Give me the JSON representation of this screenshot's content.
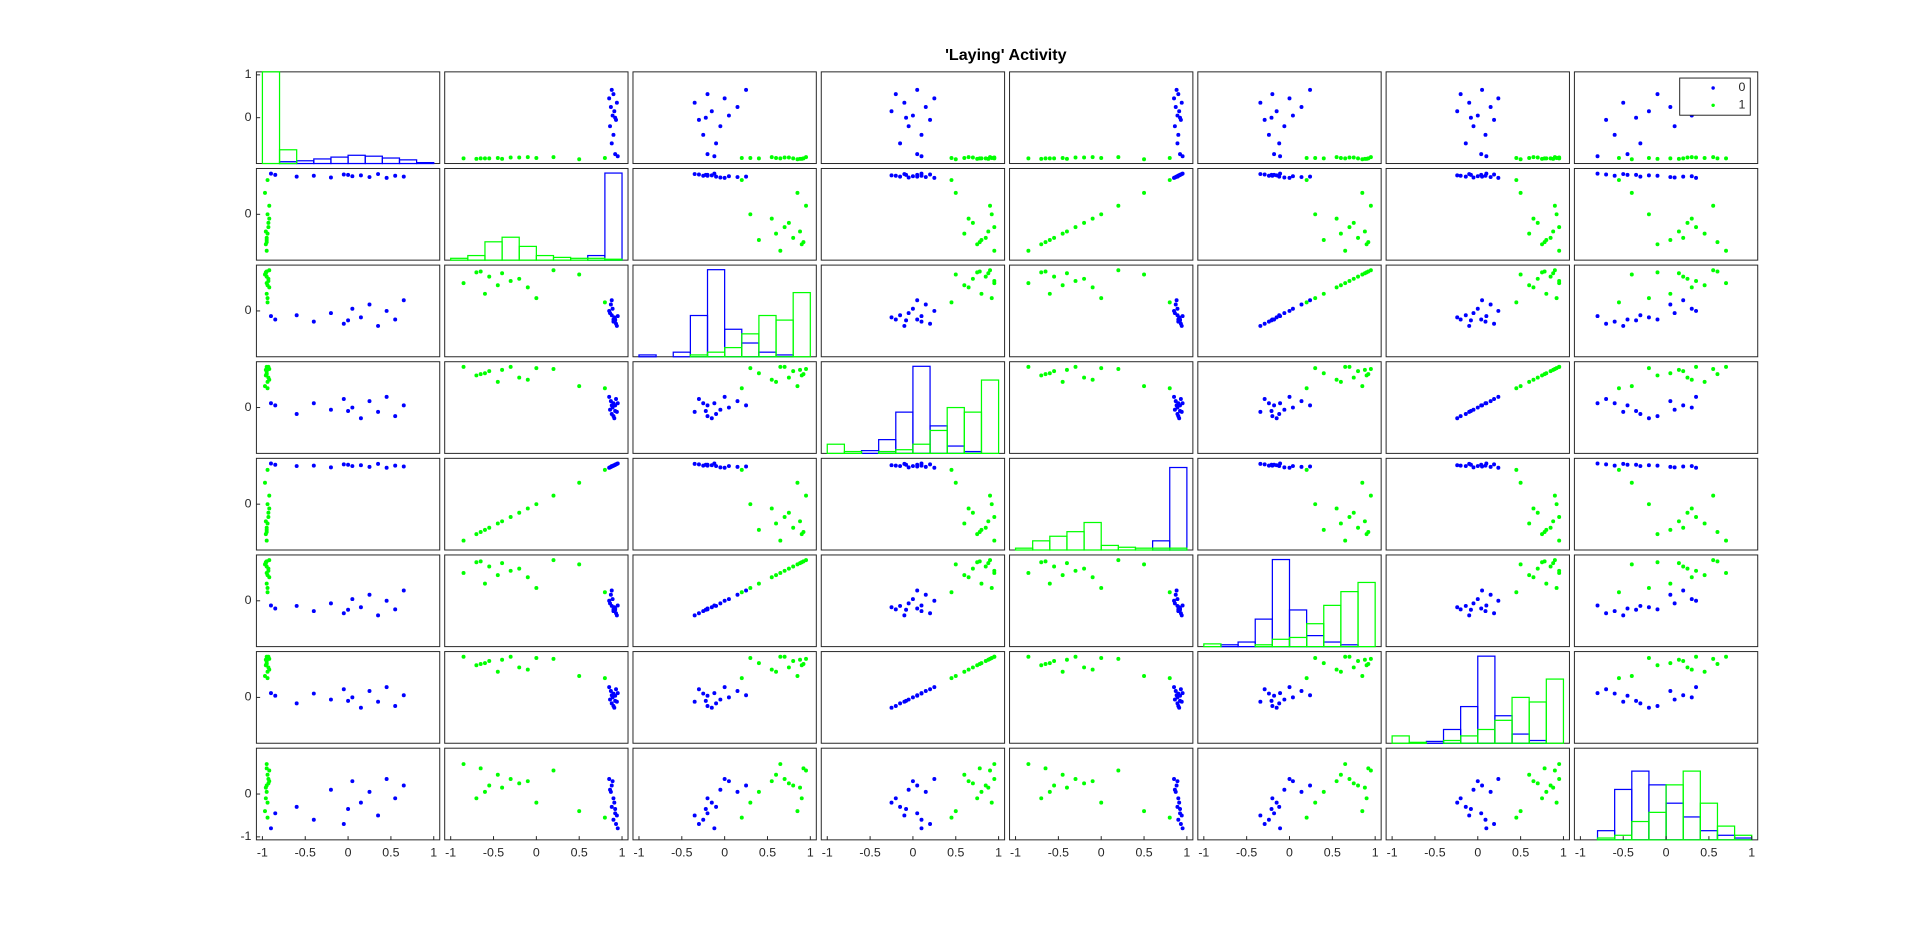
{
  "chart_data": {
    "type": "scatter_matrix",
    "title": "'Laying' Activity",
    "xlim": [
      -1.07,
      1.07
    ],
    "ylim": [
      -1.07,
      1.07
    ],
    "xticks": [
      -1,
      -0.5,
      0,
      0.5,
      1
    ],
    "row_yticks": [
      [
        0,
        1
      ],
      [
        0
      ],
      [
        0
      ],
      [
        0
      ],
      [
        0
      ],
      [
        0
      ],
      [
        0
      ],
      [
        -1,
        0
      ]
    ],
    "legend": "upper right",
    "groups": [
      {
        "name": "0",
        "color": "#0000ff",
        "observations": [
          [
            -0.85,
            0.92,
            -0.2,
            0.05,
            0.92,
            -0.18,
            0.04,
            -0.45
          ],
          [
            -0.6,
            0.88,
            -0.1,
            -0.15,
            0.89,
            -0.12,
            -0.14,
            -0.3
          ],
          [
            -0.4,
            0.9,
            -0.25,
            0.1,
            0.9,
            -0.24,
            0.09,
            -0.6
          ],
          [
            -0.2,
            0.86,
            -0.05,
            -0.05,
            0.86,
            -0.06,
            -0.05,
            0.1
          ],
          [
            -0.05,
            0.93,
            -0.3,
            0.2,
            0.93,
            -0.29,
            0.19,
            -0.7
          ],
          [
            0.05,
            0.89,
            0.05,
            0.0,
            0.89,
            0.04,
            0.0,
            0.3
          ],
          [
            0.15,
            0.91,
            -0.15,
            -0.25,
            0.91,
            -0.15,
            -0.24,
            -0.2
          ],
          [
            0.25,
            0.87,
            0.15,
            0.15,
            0.87,
            0.14,
            0.15,
            0.05
          ],
          [
            0.35,
            0.94,
            -0.35,
            -0.1,
            0.94,
            -0.34,
            -0.1,
            -0.5
          ],
          [
            0.45,
            0.85,
            0.0,
            0.25,
            0.85,
            0.0,
            0.24,
            0.35
          ],
          [
            0.55,
            0.9,
            -0.2,
            -0.2,
            0.9,
            -0.2,
            -0.2,
            -0.1
          ],
          [
            0.65,
            0.88,
            0.25,
            0.05,
            0.88,
            0.24,
            0.05,
            0.2
          ],
          [
            -0.9,
            0.95,
            -0.12,
            0.1,
            0.95,
            -0.11,
            0.1,
            -0.8
          ],
          [
            0.0,
            0.92,
            -0.22,
            -0.08,
            0.92,
            -0.21,
            -0.08,
            -0.35
          ]
        ]
      },
      {
        "name": "1",
        "color": "#00ff00",
        "observations": [
          [
            -0.95,
            -0.55,
            0.8,
            0.85,
            -0.55,
            0.8,
            0.85,
            0.2
          ],
          [
            -0.93,
            -0.3,
            0.7,
            0.95,
            -0.3,
            0.7,
            0.95,
            0.35
          ],
          [
            -0.96,
            -0.7,
            0.9,
            0.75,
            -0.7,
            0.9,
            0.75,
            -0.1
          ],
          [
            -0.94,
            -0.45,
            0.6,
            0.6,
            -0.45,
            0.6,
            0.6,
            0.45
          ],
          [
            -0.92,
            0.2,
            0.95,
            0.9,
            0.2,
            0.95,
            0.9,
            0.55
          ],
          [
            -0.95,
            -0.6,
            0.4,
            0.8,
            -0.6,
            0.4,
            0.8,
            0.05
          ],
          [
            -0.97,
            0.5,
            0.85,
            0.5,
            0.5,
            0.85,
            0.5,
            -0.4
          ],
          [
            -0.93,
            -0.2,
            0.75,
            0.7,
            -0.2,
            0.75,
            0.7,
            0.25
          ],
          [
            -0.95,
            -0.85,
            0.65,
            0.95,
            -0.85,
            0.65,
            0.95,
            0.7
          ],
          [
            -0.94,
            0.8,
            0.2,
            0.45,
            0.8,
            0.2,
            0.45,
            -0.55
          ],
          [
            -0.96,
            -0.4,
            0.88,
            0.88,
            -0.4,
            0.88,
            0.88,
            0.15
          ],
          [
            -0.92,
            -0.1,
            0.55,
            0.65,
            -0.1,
            0.55,
            0.65,
            0.3
          ],
          [
            -0.95,
            -0.65,
            0.92,
            0.78,
            -0.65,
            0.92,
            0.78,
            0.6
          ],
          [
            -0.94,
            0.0,
            0.3,
            0.92,
            0.0,
            0.3,
            0.92,
            -0.2
          ]
        ]
      }
    ],
    "histograms": [
      {
        "bins": [
          -1,
          -0.8,
          -0.6,
          -0.4,
          -0.2,
          0,
          0.2,
          0.4,
          0.6,
          0.8,
          1
        ],
        "ylim": [
          0,
          100
        ],
        "counts": [
          [
            0,
            2,
            3,
            5,
            7,
            9,
            8,
            6,
            4,
            1
          ],
          [
            100,
            15,
            0,
            0,
            0,
            0,
            0,
            0,
            0,
            0
          ]
        ]
      },
      {
        "bins": [
          -1,
          -0.8,
          -0.6,
          -0.4,
          -0.2,
          0,
          0.2,
          0.4,
          0.6,
          0.8,
          1
        ],
        "ylim": [
          0,
          100
        ],
        "counts": [
          [
            0,
            0,
            0,
            0,
            0,
            0,
            0,
            0,
            5,
            95
          ],
          [
            2,
            5,
            20,
            25,
            15,
            5,
            3,
            2,
            2,
            1
          ]
        ]
      },
      {
        "bins": [
          -1,
          -0.8,
          -0.6,
          -0.4,
          -0.2,
          0,
          0.2,
          0.4,
          0.6,
          0.8,
          1
        ],
        "ylim": [
          0,
          100
        ],
        "counts": [
          [
            2,
            0,
            5,
            45,
            95,
            30,
            15,
            5,
            2,
            0
          ],
          [
            0,
            0,
            0,
            2,
            5,
            10,
            25,
            45,
            40,
            70
          ]
        ]
      },
      {
        "bins": [
          -1,
          -0.8,
          -0.6,
          -0.4,
          -0.2,
          0,
          0.2,
          0.4,
          0.6,
          0.8,
          1
        ],
        "ylim": [
          0,
          100
        ],
        "counts": [
          [
            0,
            0,
            3,
            15,
            45,
            95,
            30,
            8,
            2,
            0
          ],
          [
            10,
            2,
            0,
            2,
            4,
            10,
            25,
            50,
            45,
            80
          ]
        ]
      },
      {
        "bins": [
          -1,
          -0.8,
          -0.6,
          -0.4,
          -0.2,
          0,
          0.2,
          0.4,
          0.6,
          0.8,
          1
        ],
        "ylim": [
          0,
          100
        ],
        "counts": [
          [
            0,
            0,
            0,
            0,
            0,
            0,
            0,
            0,
            10,
            90
          ],
          [
            2,
            10,
            15,
            20,
            30,
            5,
            3,
            2,
            2,
            2
          ]
        ]
      },
      {
        "bins": [
          -1,
          -0.8,
          -0.6,
          -0.4,
          -0.2,
          0,
          0.2,
          0.4,
          0.6,
          0.8,
          1
        ],
        "ylim": [
          0,
          100
        ],
        "counts": [
          [
            0,
            2,
            5,
            30,
            95,
            40,
            12,
            5,
            2,
            0
          ],
          [
            3,
            0,
            0,
            2,
            8,
            10,
            25,
            45,
            60,
            70
          ]
        ]
      },
      {
        "bins": [
          -1,
          -0.8,
          -0.6,
          -0.4,
          -0.2,
          0,
          0.2,
          0.4,
          0.6,
          0.8,
          1
        ],
        "ylim": [
          0,
          100
        ],
        "counts": [
          [
            0,
            0,
            2,
            15,
            40,
            95,
            30,
            10,
            3,
            0
          ],
          [
            8,
            1,
            0,
            3,
            8,
            15,
            25,
            50,
            45,
            70
          ]
        ]
      },
      {
        "bins": [
          -1,
          -0.8,
          -0.6,
          -0.4,
          -0.2,
          0,
          0.2,
          0.4,
          0.6,
          0.8,
          1
        ],
        "ylim": [
          0,
          100
        ],
        "counts": [
          [
            0,
            10,
            55,
            75,
            60,
            40,
            25,
            10,
            5,
            2
          ],
          [
            0,
            2,
            5,
            20,
            30,
            60,
            75,
            40,
            15,
            5
          ]
        ]
      }
    ]
  }
}
